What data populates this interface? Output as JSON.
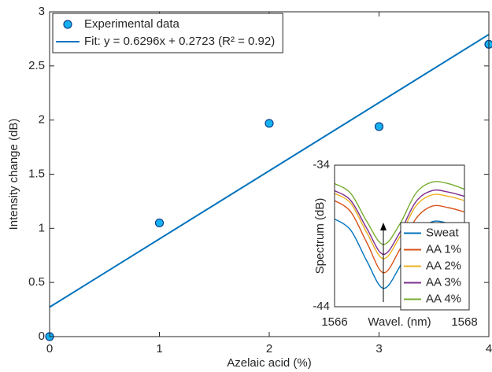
{
  "chart_data": [
    {
      "type": "scatter",
      "xlabel": "Azelaic acid (%)",
      "ylabel": "Intensity change (dB)",
      "xlim": [
        0,
        4
      ],
      "xticks": [
        0,
        1,
        2,
        3,
        4
      ],
      "ylim": [
        0,
        3
      ],
      "yticks": [
        0,
        0.5,
        1,
        1.5,
        2,
        2.5,
        3
      ],
      "legend": "upper left",
      "series": [
        {
          "name": "Experimental data",
          "type": "scatter",
          "color": "#16b2ef",
          "edgecolor": "#0b3f8f",
          "x": [
            0,
            1,
            2,
            3,
            4
          ],
          "values": [
            0,
            1.05,
            1.97,
            1.94,
            2.7
          ]
        },
        {
          "name": "Fit: y = 0.6296x + 0.2723 (R² = 0.92)",
          "type": "line",
          "color": "#0072bd",
          "x": [
            0,
            4
          ],
          "values": [
            0.2723,
            2.7907
          ]
        }
      ]
    },
    {
      "type": "line",
      "xlabel": "Wavel. (nm)",
      "ylabel": "Spectrum (dB)",
      "xlim": [
        1566,
        1568
      ],
      "xticks": [
        1566,
        1568
      ],
      "ylim": [
        -44,
        -34
      ],
      "yticks": [
        -44,
        -34
      ],
      "legend": "lower right",
      "x": [
        1566,
        1566.25,
        1566.5,
        1566.75,
        1567,
        1567.25,
        1567.5,
        1567.75,
        1568
      ],
      "series": [
        {
          "name": "Sweat",
          "color": "#0072bd",
          "values": [
            -37.8,
            -38.6,
            -40.8,
            -42.7,
            -41.2,
            -38.9,
            -38.0,
            -38.1,
            -38.4
          ]
        },
        {
          "name": "AA 1%",
          "color": "#d95319",
          "values": [
            -36.5,
            -37.3,
            -39.5,
            -41.6,
            -40.0,
            -37.8,
            -36.9,
            -37.0,
            -37.3
          ]
        },
        {
          "name": "AA 2%",
          "color": "#edb120",
          "values": [
            -36.0,
            -36.7,
            -38.8,
            -40.6,
            -39.1,
            -36.9,
            -36.1,
            -36.2,
            -36.5
          ]
        },
        {
          "name": "AA 3%",
          "color": "#7e2f8e",
          "values": [
            -35.8,
            -36.5,
            -38.5,
            -40.3,
            -38.8,
            -36.6,
            -35.8,
            -35.9,
            -36.2
          ]
        },
        {
          "name": "AA 4%",
          "color": "#77ac30",
          "values": [
            -35.3,
            -36.0,
            -38.0,
            -39.6,
            -38.2,
            -36.0,
            -35.2,
            -35.3,
            -35.7
          ]
        }
      ]
    }
  ]
}
